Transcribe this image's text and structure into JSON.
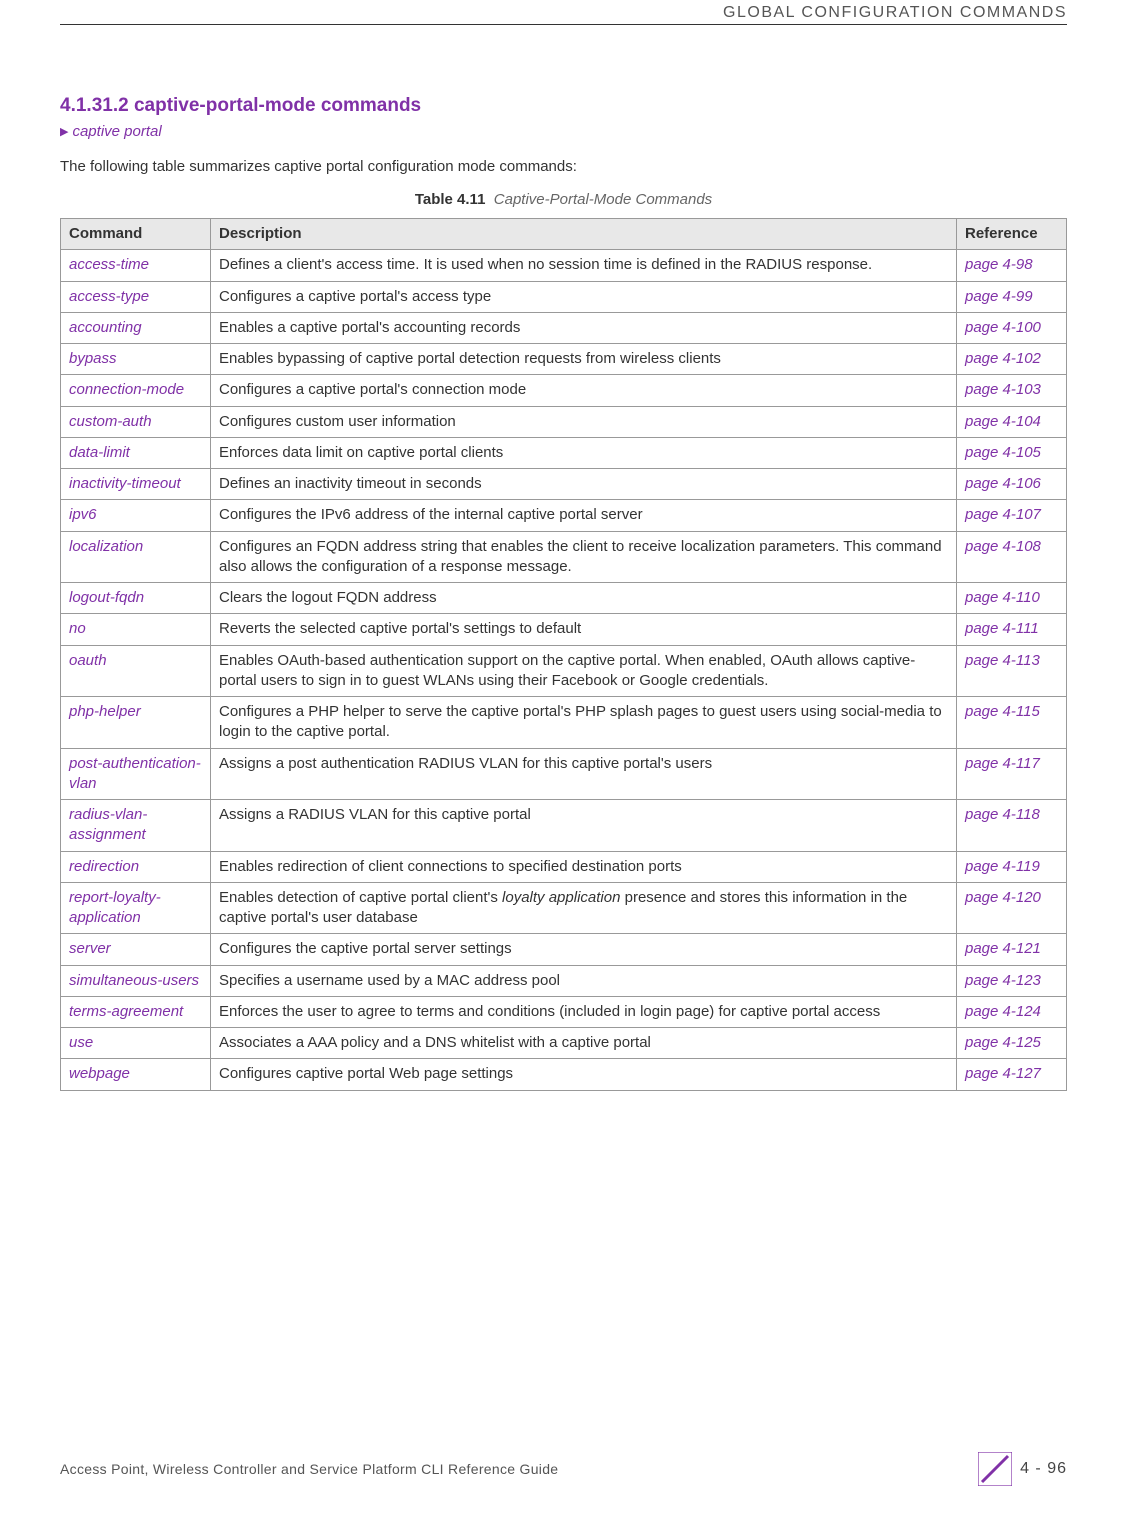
{
  "header": {
    "chapterTitle": "GLOBAL CONFIGURATION COMMANDS"
  },
  "section": {
    "number": "4.1.31.2",
    "title": "captive-portal-mode commands",
    "breadcrumb": "captive portal",
    "intro": "The following table summarizes captive portal configuration mode commands:"
  },
  "table": {
    "captionLabel": "Table 4.11",
    "captionTitle": "Captive-Portal-Mode Commands",
    "columns": [
      "Command",
      "Description",
      "Reference"
    ],
    "rows": [
      {
        "cmd": "access-time",
        "desc": "Defines a client's access time. It is used when no session time is defined in the RADIUS response.",
        "ref": "page 4-98"
      },
      {
        "cmd": "access-type",
        "desc": "Configures a captive portal's access type",
        "ref": "page 4-99"
      },
      {
        "cmd": "accounting",
        "desc": "Enables a captive portal's accounting records",
        "ref": "page 4-100"
      },
      {
        "cmd": "bypass",
        "desc": "Enables bypassing of captive portal detection requests from wireless clients",
        "ref": "page 4-102"
      },
      {
        "cmd": "connection-mode",
        "desc": "Configures a captive portal's connection mode",
        "ref": "page 4-103"
      },
      {
        "cmd": "custom-auth",
        "desc": "Configures custom user information",
        "ref": "page 4-104"
      },
      {
        "cmd": "data-limit",
        "desc": "Enforces data limit on captive portal clients",
        "ref": "page 4-105"
      },
      {
        "cmd": "inactivity-timeout",
        "desc": "Defines an inactivity timeout in seconds",
        "ref": "page 4-106"
      },
      {
        "cmd": "ipv6",
        "desc": "Configures the IPv6 address of the internal captive portal server",
        "ref": "page 4-107"
      },
      {
        "cmd": "localization",
        "desc": "Configures an FQDN address string that enables the client to receive localization parameters. This command also allows the configuration of a response message.",
        "ref": "page 4-108"
      },
      {
        "cmd": "logout-fqdn",
        "desc": "Clears the logout FQDN address",
        "ref": "page 4-110"
      },
      {
        "cmd": "no",
        "desc": "Reverts the selected captive portal's settings to default",
        "ref": "page 4-111"
      },
      {
        "cmd": "oauth",
        "desc": "Enables OAuth-based authentication support on the captive portal. When enabled, OAuth allows captive-portal users to sign in to guest WLANs using their Facebook or Google credentials.",
        "ref": "page 4-113"
      },
      {
        "cmd": "php-helper",
        "desc": "Configures a PHP helper to serve the captive portal's PHP splash pages to guest users using social-media to login to the captive portal.",
        "ref": "page 4-115"
      },
      {
        "cmd": "post-authentication-vlan",
        "desc": "Assigns a post authentication RADIUS VLAN for this captive portal's users",
        "ref": "page 4-117"
      },
      {
        "cmd": "radius-vlan-assignment",
        "desc": "Assigns a RADIUS VLAN for this captive portal",
        "ref": "page 4-118"
      },
      {
        "cmd": "redirection",
        "desc": "Enables redirection of client connections to specified destination ports",
        "ref": "page 4-119"
      },
      {
        "cmd": "report-loyalty-application",
        "descPrefix": "Enables detection of captive portal client's ",
        "descEm": "loyalty application",
        "descSuffix": " presence and stores this information in the captive portal's user database",
        "ref": "page 4-120"
      },
      {
        "cmd": "server",
        "desc": "Configures the captive portal server settings",
        "ref": "page 4-121"
      },
      {
        "cmd": "simultaneous-users",
        "desc": "Specifies a username used by a MAC address pool",
        "ref": "page 4-123"
      },
      {
        "cmd": "terms-agreement",
        "desc": "Enforces the user to agree to terms and conditions (included in login page) for captive portal access",
        "ref": "page 4-124"
      },
      {
        "cmd": "use",
        "desc": "Associates a AAA policy and a DNS whitelist with a captive portal",
        "ref": "page 4-125"
      },
      {
        "cmd": "webpage",
        "desc": "Configures captive portal Web page settings",
        "ref": "page 4-127"
      }
    ]
  },
  "footer": {
    "docTitle": "Access Point, Wireless Controller and Service Platform CLI Reference Guide",
    "pageNumber": "4 - 96"
  },
  "colors": {
    "accent": "#8031A7",
    "headerBg": "#e8e8e8",
    "border": "#999999",
    "text": "#333333"
  }
}
